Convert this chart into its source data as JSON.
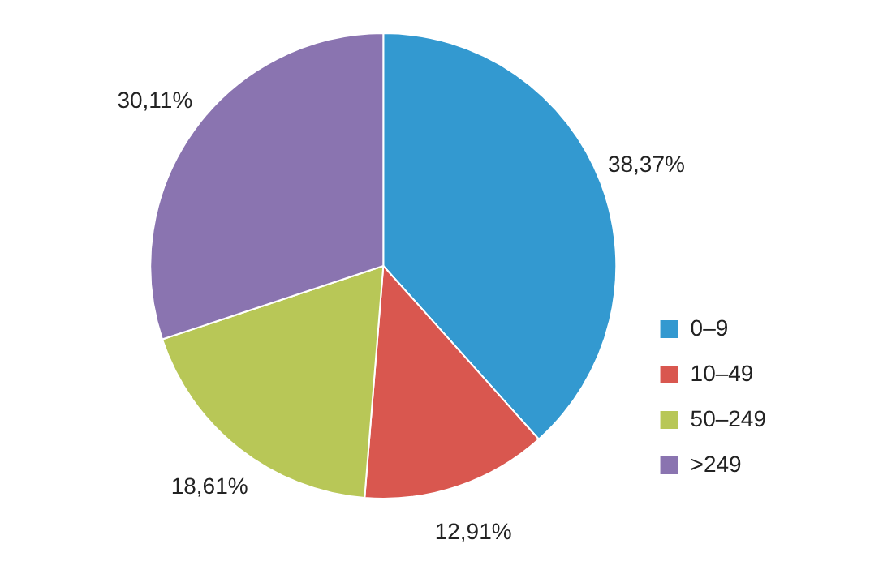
{
  "chart_data": {
    "type": "pie",
    "categories": [
      "0–9",
      "10–49",
      "50–249",
      ">249"
    ],
    "values": [
      38.37,
      12.91,
      18.61,
      30.11
    ],
    "colors": [
      "#3399d0",
      "#d9574f",
      "#b8c757",
      "#8a74b0"
    ],
    "value_labels": [
      "38,37%",
      "12,91%",
      "18,61%",
      "30,11%"
    ],
    "legend": "bottom right"
  }
}
